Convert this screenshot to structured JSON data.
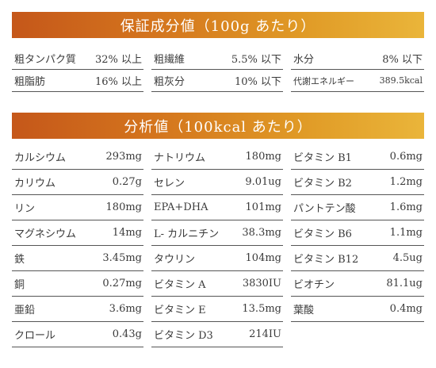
{
  "guarantee": {
    "title": "保証成分値（100g あたり）",
    "rows": [
      [
        {
          "label": "粗タンパク質",
          "value": "32% 以上"
        },
        {
          "label": "粗繊維",
          "value": "5.5% 以下"
        },
        {
          "label": "水分",
          "value": "8% 以下"
        }
      ],
      [
        {
          "label": "粗脂肪",
          "value": "16% 以上"
        },
        {
          "label": "粗灰分",
          "value": "10% 以下"
        },
        {
          "label": "代謝エネルギー",
          "value": "389.5kcal"
        }
      ]
    ]
  },
  "analysis": {
    "title": "分析値（100kcal あたり）",
    "rows": [
      [
        {
          "label": "カルシウム",
          "value": "293mg"
        },
        {
          "label": "ナトリウム",
          "value": "180mg"
        },
        {
          "label": "ビタミン B1",
          "value": "0.6mg"
        }
      ],
      [
        {
          "label": "カリウム",
          "value": "0.27g"
        },
        {
          "label": "セレン",
          "value": "9.01ug"
        },
        {
          "label": "ビタミン B2",
          "value": "1.2mg"
        }
      ],
      [
        {
          "label": "リン",
          "value": "180mg"
        },
        {
          "label": "EPA+DHA",
          "value": "101mg"
        },
        {
          "label": "パントテン酸",
          "value": "1.6mg"
        }
      ],
      [
        {
          "label": "マグネシウム",
          "value": "14mg"
        },
        {
          "label": "L- カルニチン",
          "value": "38.3mg"
        },
        {
          "label": "ビタミン B6",
          "value": "1.1mg"
        }
      ],
      [
        {
          "label": "鉄",
          "value": "3.45mg"
        },
        {
          "label": "タウリン",
          "value": "104mg"
        },
        {
          "label": "ビタミン B12",
          "value": "4.5ug"
        }
      ],
      [
        {
          "label": "銅",
          "value": "0.27mg"
        },
        {
          "label": "ビタミン A",
          "value": "3830IU"
        },
        {
          "label": "ビオチン",
          "value": "81.1ug"
        }
      ],
      [
        {
          "label": "亜鉛",
          "value": "3.6mg"
        },
        {
          "label": "ビタミン E",
          "value": "13.5mg"
        },
        {
          "label": "葉酸",
          "value": "0.4mg"
        }
      ],
      [
        {
          "label": "クロール",
          "value": "0.43g"
        },
        {
          "label": "ビタミン D3",
          "value": "214IU"
        }
      ]
    ]
  }
}
